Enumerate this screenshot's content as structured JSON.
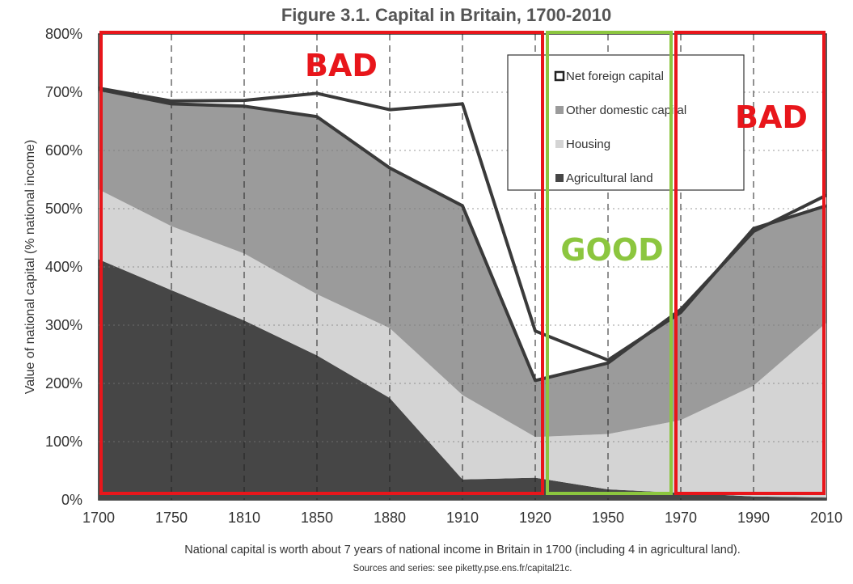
{
  "chart_data": {
    "type": "area",
    "title": "Figure 3.1. Capital in Britain, 1700-2010",
    "ylabel": "Value of national capital (% national income)",
    "xlabel": "",
    "x": [
      1700,
      1750,
      1810,
      1850,
      1880,
      1910,
      1920,
      1950,
      1970,
      1990,
      2010
    ],
    "x_ticks": [
      "1700",
      "1750",
      "1810",
      "1850",
      "1880",
      "1910",
      "1920",
      "1950",
      "1970",
      "1990",
      "2010"
    ],
    "y_ticks": [
      "0%",
      "100%",
      "200%",
      "300%",
      "400%",
      "500%",
      "600%",
      "700%",
      "800%"
    ],
    "ylim": [
      0,
      800
    ],
    "grid": "vertical dashed and horizontal dotted",
    "legend_position": "top-right",
    "series": [
      {
        "name": "Agricultural land",
        "color": "#464646",
        "values": [
          413,
          360,
          308,
          248,
          175,
          35,
          38,
          18,
          12,
          6,
          4
        ]
      },
      {
        "name": "Housing",
        "color": "#d4d4d4",
        "values": [
          120,
          110,
          115,
          105,
          120,
          145,
          70,
          95,
          125,
          190,
          300
        ]
      },
      {
        "name": "Other domestic capital",
        "color": "#9b9b9b",
        "values": [
          172,
          210,
          253,
          305,
          275,
          325,
          97,
          122,
          190,
          265,
          219
        ]
      },
      {
        "name": "Net foreign capital",
        "color": "#ffffff",
        "values": [
          2,
          5,
          10,
          40,
          100,
          175,
          85,
          5,
          -5,
          5,
          -18
        ]
      }
    ],
    "caption": "National capital is worth about 7 years of national income in Britain in 1700 (including 4 in agricultural land).",
    "source": "Sources and series: see piketty.pse.ens.fr/capital21c.",
    "annotations": [
      {
        "label": "BAD",
        "color": "#e8161b",
        "x_from": 1700,
        "x_to": 1924
      },
      {
        "label": "GOOD",
        "color": "#8cc63f",
        "x_from": 1924,
        "x_to": 1968
      },
      {
        "label": "BAD",
        "color": "#e8161b",
        "x_from": 1968,
        "x_to": 2010
      }
    ]
  }
}
